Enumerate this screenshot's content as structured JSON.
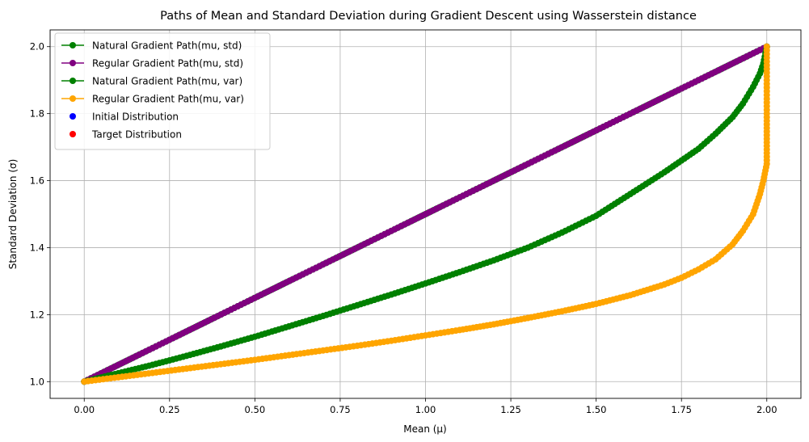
{
  "chart_data": {
    "type": "line",
    "title": "Paths of Mean and Standard Deviation during Gradient Descent using Wasserstein distance",
    "xlabel": "Mean (μ)",
    "ylabel": "Standard Deviation (σ)",
    "xlim": [
      -0.1,
      2.1
    ],
    "ylim": [
      0.95,
      2.05
    ],
    "xticks": [
      0.0,
      0.25,
      0.5,
      0.75,
      1.0,
      1.25,
      1.5,
      1.75,
      2.0
    ],
    "xtick_labels": [
      "0.00",
      "0.25",
      "0.50",
      "0.75",
      "1.00",
      "1.25",
      "1.50",
      "1.75",
      "2.00"
    ],
    "yticks": [
      1.0,
      1.2,
      1.4,
      1.6,
      1.8,
      2.0
    ],
    "ytick_labels": [
      "1.0",
      "1.2",
      "1.4",
      "1.6",
      "1.8",
      "2.0"
    ],
    "grid": true,
    "legend_position": "upper-left",
    "series": [
      {
        "name": "Natural Gradient Path(mu, std)",
        "color": "#008000",
        "marker": "circle",
        "line": true,
        "x": [
          0.0,
          2.0
        ],
        "y": [
          1.0,
          2.0
        ]
      },
      {
        "name": "Regular Gradient Path(mu, std)",
        "color": "#800080",
        "marker": "circle",
        "line": true,
        "x": [
          0.0,
          0.1,
          0.2,
          0.3,
          0.4,
          0.5,
          0.6,
          0.7,
          0.8,
          0.9,
          1.0,
          1.1,
          1.2,
          1.3,
          1.4,
          1.5,
          1.6,
          1.7,
          1.8,
          1.9,
          2.0
        ],
        "y": [
          1.0,
          1.05,
          1.1,
          1.15,
          1.2,
          1.25,
          1.3,
          1.35,
          1.4,
          1.45,
          1.5,
          1.55,
          1.6,
          1.65,
          1.7,
          1.75,
          1.8,
          1.85,
          1.9,
          1.95,
          2.0
        ]
      },
      {
        "name": "Natural Gradient Path(mu, var)",
        "color": "#008000",
        "marker": "circle",
        "line": true,
        "x": [
          0.0,
          0.1,
          0.2,
          0.3,
          0.4,
          0.5,
          0.6,
          0.7,
          0.8,
          0.9,
          1.0,
          1.1,
          1.2,
          1.3,
          1.4,
          1.5,
          1.6,
          1.7,
          1.75,
          1.8,
          1.85,
          1.9,
          1.93,
          1.96,
          1.98,
          1.99,
          2.0
        ],
        "y": [
          1.0,
          1.025,
          1.05,
          1.077,
          1.105,
          1.134,
          1.165,
          1.196,
          1.228,
          1.26,
          1.293,
          1.327,
          1.362,
          1.4,
          1.445,
          1.495,
          1.56,
          1.625,
          1.66,
          1.695,
          1.74,
          1.79,
          1.83,
          1.88,
          1.92,
          1.95,
          2.0
        ]
      },
      {
        "name": "Regular Gradient Path(mu, var)",
        "color": "#FFA500",
        "marker": "circle",
        "line": true,
        "x": [
          0.0,
          0.1,
          0.2,
          0.3,
          0.4,
          0.5,
          0.6,
          0.7,
          0.8,
          0.9,
          1.0,
          1.1,
          1.2,
          1.3,
          1.4,
          1.5,
          1.6,
          1.7,
          1.75,
          1.8,
          1.85,
          1.9,
          1.93,
          1.96,
          1.98,
          1.99,
          2.0,
          2.0,
          2.0
        ],
        "y": [
          1.0,
          1.013,
          1.026,
          1.039,
          1.052,
          1.065,
          1.079,
          1.093,
          1.107,
          1.122,
          1.138,
          1.154,
          1.171,
          1.19,
          1.21,
          1.232,
          1.258,
          1.29,
          1.31,
          1.335,
          1.365,
          1.41,
          1.45,
          1.5,
          1.56,
          1.6,
          1.65,
          1.8,
          2.0
        ]
      },
      {
        "name": "Initial Distribution",
        "color": "#0000FF",
        "marker": "circle",
        "line": false,
        "x": [],
        "y": []
      },
      {
        "name": "Target Distribution",
        "color": "#FF0000",
        "marker": "circle",
        "line": false,
        "x": [],
        "y": []
      }
    ]
  }
}
